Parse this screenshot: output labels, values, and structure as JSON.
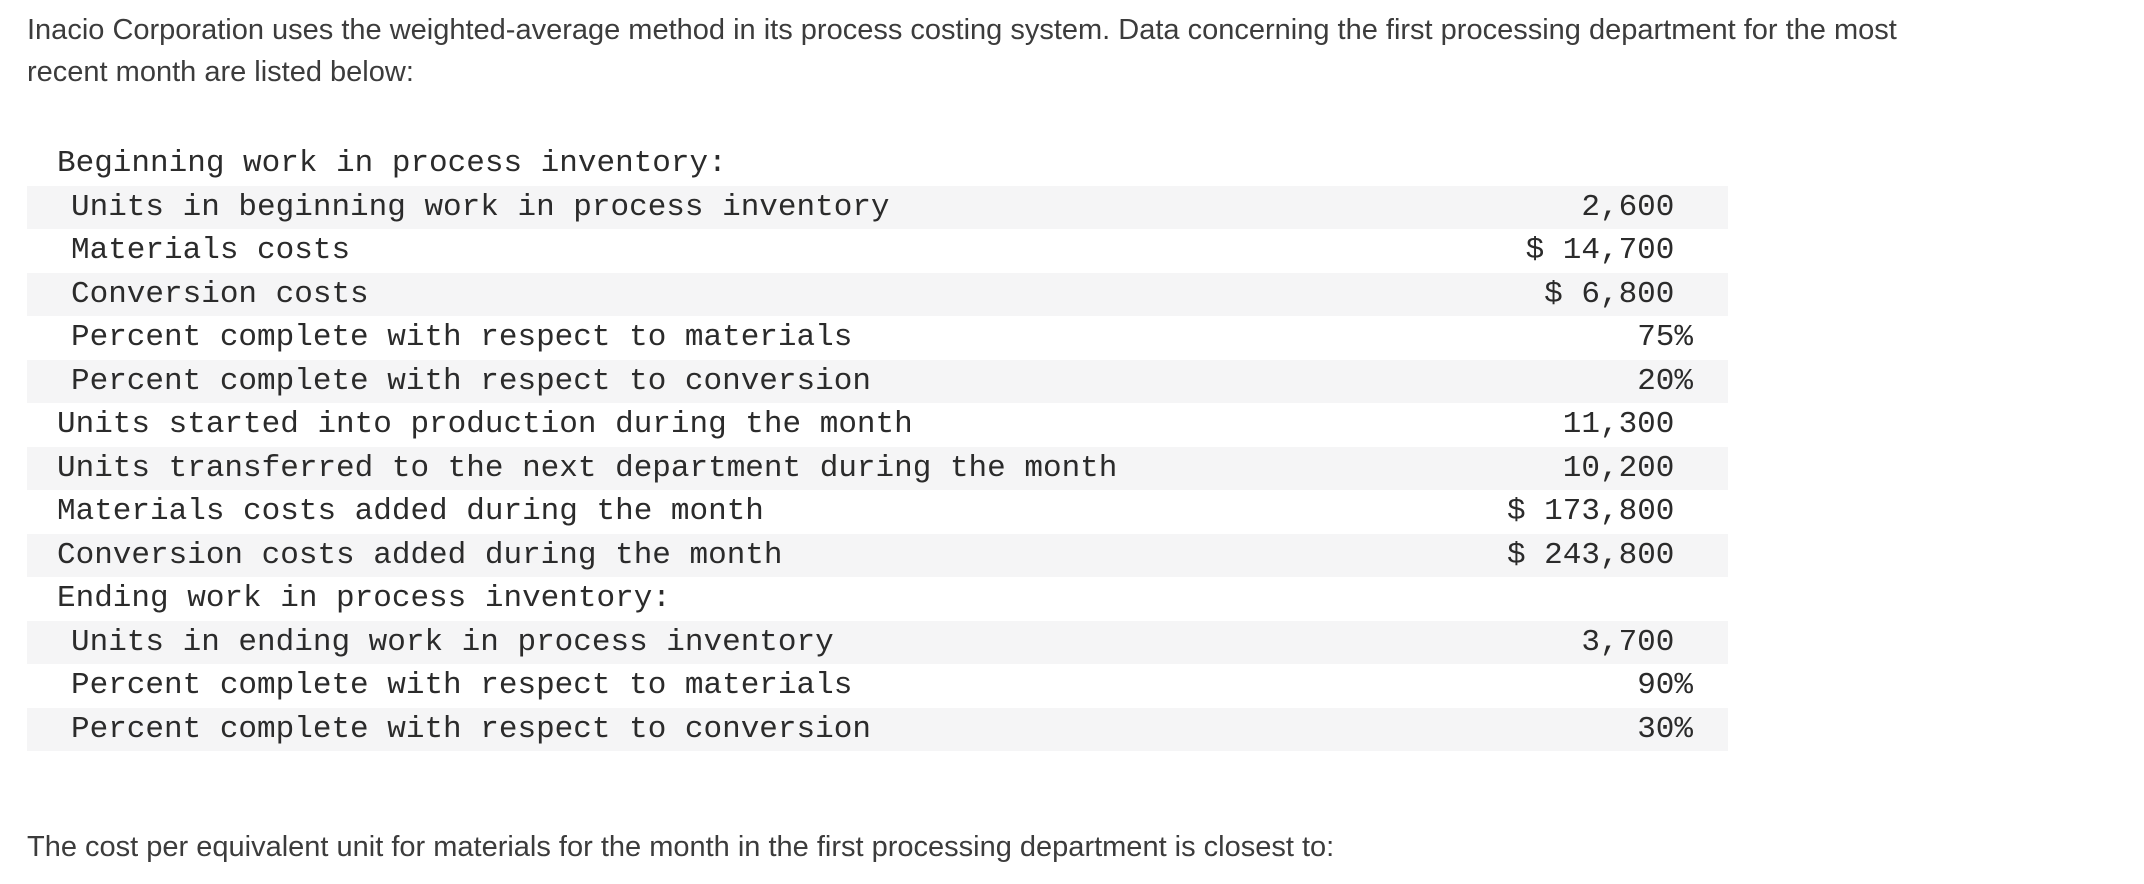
{
  "intro": {
    "lines": [
      "Inacio Corporation uses the weighted-average method in its process costing system. Data concerning the first processing department for the most",
      "recent month are listed below:"
    ]
  },
  "data_table": {
    "rows": [
      {
        "label": "Beginning work in process inventory:",
        "value": "",
        "indent": 1,
        "shaded": false
      },
      {
        "label": "Units in beginning work in process inventory",
        "value": "2,600 ",
        "indent": 2,
        "shaded": true
      },
      {
        "label": "Materials costs",
        "value": "$ 14,700 ",
        "indent": 2,
        "shaded": false
      },
      {
        "label": "Conversion costs",
        "value": "$ 6,800 ",
        "indent": 2,
        "shaded": true
      },
      {
        "label": "Percent complete with respect to materials",
        "value": "75%",
        "indent": 2,
        "shaded": false
      },
      {
        "label": "Percent complete with respect to conversion",
        "value": "20%",
        "indent": 2,
        "shaded": true
      },
      {
        "label": "Units started into production during the month",
        "value": "11,300 ",
        "indent": 1,
        "shaded": false
      },
      {
        "label": "Units transferred to the next department during the month",
        "value": "10,200 ",
        "indent": 1,
        "shaded": true
      },
      {
        "label": "Materials costs added during the month",
        "value": "$ 173,800 ",
        "indent": 1,
        "shaded": false
      },
      {
        "label": "Conversion costs added during the month",
        "value": "$ 243,800 ",
        "indent": 1,
        "shaded": true
      },
      {
        "label": "Ending work in process inventory:",
        "value": "",
        "indent": 1,
        "shaded": false
      },
      {
        "label": "Units in ending work in process inventory",
        "value": "3,700 ",
        "indent": 2,
        "shaded": true
      },
      {
        "label": "Percent complete with respect to materials",
        "value": "90%",
        "indent": 2,
        "shaded": false
      },
      {
        "label": "Percent complete with respect to conversion",
        "value": "30%",
        "indent": 2,
        "shaded": true
      }
    ]
  },
  "question": {
    "text": "The cost per equivalent unit for materials for the month in the first processing department is closest to:"
  },
  "colors": {
    "background": "#ffffff",
    "shaded_row": "#f5f5f6",
    "table_text": "#2b2b2b",
    "body_text": "#3c3c3c"
  }
}
